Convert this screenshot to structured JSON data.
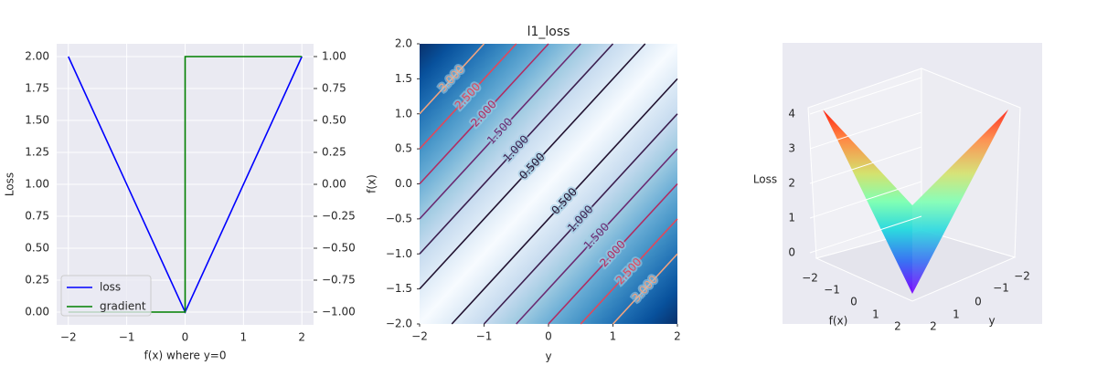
{
  "chart_data": [
    {
      "type": "line",
      "xlabel": "f(x) where y=0",
      "ylabel": "Loss",
      "xlim": [
        -2.2,
        2.2
      ],
      "ylim": [
        -0.1,
        2.1
      ],
      "y2lim": [
        -1.1,
        1.1
      ],
      "xticks": [
        {
          "value": -2,
          "label": "−2"
        },
        {
          "value": -1,
          "label": "−1"
        },
        0,
        1,
        2
      ],
      "yticks": [
        {
          "value": 0,
          "label": "0.00"
        },
        {
          "value": 0.25,
          "label": "0.25"
        },
        {
          "value": 0.5,
          "label": "0.50"
        },
        {
          "value": 0.75,
          "label": "0.75"
        },
        {
          "value": 1,
          "label": "1.00"
        },
        {
          "value": 1.25,
          "label": "1.25"
        },
        {
          "value": 1.5,
          "label": "1.50"
        },
        {
          "value": 1.75,
          "label": "1.75"
        },
        {
          "value": 2,
          "label": "2.00"
        }
      ],
      "y2ticks": [
        {
          "value": -1,
          "label": "−1.00"
        },
        {
          "value": -0.75,
          "label": "−0.75"
        },
        {
          "value": -0.5,
          "label": "−0.50"
        },
        {
          "value": -0.25,
          "label": "−0.25"
        },
        {
          "value": 0,
          "label": "0.00"
        },
        {
          "value": 0.25,
          "label": "0.25"
        },
        {
          "value": 0.5,
          "label": "0.50"
        },
        {
          "value": 0.75,
          "label": "0.75"
        },
        {
          "value": 1,
          "label": "1.00"
        }
      ],
      "grid": true,
      "legend": "lower left",
      "series": [
        {
          "name": "loss",
          "color": "#0000ff",
          "x": [
            -2,
            0,
            2
          ],
          "values": [
            2,
            0,
            2
          ]
        },
        {
          "name": "gradient",
          "color": "#008000",
          "axis": "y2",
          "x": [
            -2,
            0,
            0,
            2
          ],
          "values": [
            -1,
            -1,
            1,
            1
          ]
        }
      ]
    },
    {
      "type": "contour",
      "title": "l1_loss",
      "xlabel": "y",
      "ylabel": "f(x)",
      "xlim": [
        -2,
        2
      ],
      "ylim": [
        -2,
        2
      ],
      "xticks": [
        {
          "value": -2,
          "label": "−2"
        },
        {
          "value": -1,
          "label": "−1"
        },
        0,
        1,
        2
      ],
      "yticks": [
        {
          "value": -2,
          "label": "−2.0"
        },
        {
          "value": -1.5,
          "label": "−1.5"
        },
        {
          "value": -1,
          "label": "−1.0"
        },
        {
          "value": -0.5,
          "label": "−0.5"
        },
        {
          "value": 0,
          "label": "0.0"
        },
        {
          "value": 0.5,
          "label": "0.5"
        },
        {
          "value": 1,
          "label": "1.0"
        },
        {
          "value": 1.5,
          "label": "1.5"
        },
        {
          "value": 2,
          "label": "2.0"
        }
      ],
      "levels": [
        0.5,
        1,
        1.5,
        2,
        2.5,
        3
      ],
      "level_labels": [
        "0.500",
        "1.000",
        "1.500",
        "2.000",
        "2.500",
        "3.000"
      ],
      "level_colors": [
        "#221331",
        "#3b1f4f",
        "#6a2a72",
        "#b02d62",
        "#e2475a",
        "#f2a37f"
      ],
      "colormap": "Blues"
    },
    {
      "type": "surface",
      "xlabel": "f(x)",
      "ylabel": "y",
      "zlabel": "Loss",
      "zlim": [
        0,
        4
      ],
      "xticks": [
        {
          "value": -2,
          "label": "−2"
        },
        {
          "value": -1,
          "label": "−1"
        },
        0,
        1,
        2
      ],
      "yticks": [
        2,
        1,
        0,
        {
          "value": -1,
          "label": "−1"
        },
        {
          "value": -2,
          "label": "−2"
        }
      ],
      "zticks": [
        0,
        1,
        2,
        3,
        4
      ],
      "colormap": "rainbow"
    }
  ]
}
